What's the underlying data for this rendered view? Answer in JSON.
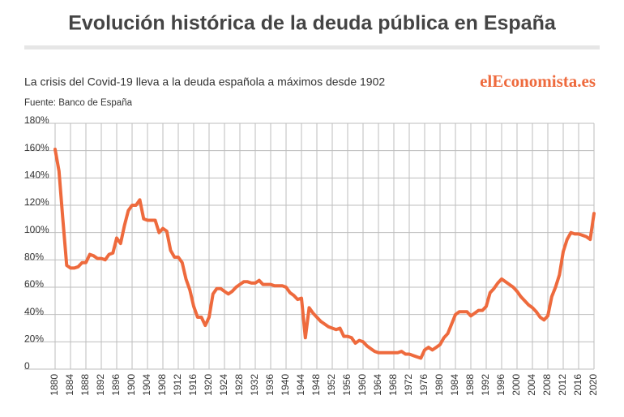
{
  "chart_data": {
    "type": "line",
    "title": "Evolución histórica de la deuda pública en España",
    "subtitle": "La crisis del Covid-19 lleva a la deuda española a máximos desde 1902",
    "source": "Fuente:  Banco de España",
    "brand": "elEconomista.es",
    "color": "#ee6a3d",
    "grid": true,
    "x": [
      1880,
      1881,
      1882,
      1883,
      1884,
      1885,
      1886,
      1887,
      1888,
      1889,
      1890,
      1891,
      1892,
      1893,
      1894,
      1895,
      1896,
      1897,
      1898,
      1899,
      1900,
      1901,
      1902,
      1903,
      1904,
      1905,
      1906,
      1907,
      1908,
      1909,
      1910,
      1911,
      1912,
      1913,
      1914,
      1915,
      1916,
      1917,
      1918,
      1919,
      1920,
      1921,
      1922,
      1923,
      1924,
      1925,
      1926,
      1927,
      1928,
      1929,
      1930,
      1931,
      1932,
      1933,
      1934,
      1935,
      1936,
      1937,
      1938,
      1939,
      1940,
      1941,
      1942,
      1943,
      1944,
      1945,
      1946,
      1947,
      1948,
      1949,
      1950,
      1951,
      1952,
      1953,
      1954,
      1955,
      1956,
      1957,
      1958,
      1959,
      1960,
      1961,
      1962,
      1963,
      1964,
      1965,
      1966,
      1967,
      1968,
      1969,
      1970,
      1971,
      1972,
      1973,
      1974,
      1975,
      1976,
      1977,
      1978,
      1979,
      1980,
      1981,
      1982,
      1983,
      1984,
      1985,
      1986,
      1987,
      1988,
      1989,
      1990,
      1991,
      1992,
      1993,
      1994,
      1995,
      1996,
      1997,
      1998,
      1999,
      2000,
      2001,
      2002,
      2003,
      2004,
      2005,
      2006,
      2007,
      2008,
      2009,
      2010,
      2011,
      2012,
      2013,
      2014,
      2015,
      2016,
      2017,
      2018,
      2019,
      2020
    ],
    "values": [
      161,
      145,
      110,
      76,
      74,
      74,
      75,
      78,
      78,
      84,
      83,
      81,
      81,
      80,
      84,
      85,
      96,
      92,
      105,
      116,
      120,
      120,
      124,
      110,
      109,
      109,
      109,
      100,
      103,
      101,
      87,
      82,
      82,
      78,
      66,
      58,
      46,
      38,
      38,
      32,
      38,
      55,
      59,
      59,
      57,
      55,
      57,
      60,
      62,
      64,
      64,
      63,
      63,
      65,
      62,
      62,
      62,
      61,
      61,
      61,
      60,
      56,
      54,
      51,
      52,
      23,
      45,
      41,
      38,
      35,
      33,
      31,
      30,
      29,
      30,
      24,
      24,
      23,
      19,
      21,
      20,
      17,
      15,
      13,
      12,
      12,
      12,
      12,
      12,
      12,
      13,
      11,
      11,
      10,
      9,
      8,
      14,
      16,
      14,
      16,
      18,
      23,
      26,
      33,
      40,
      42,
      42,
      42,
      39,
      41,
      43,
      43,
      46,
      56,
      59,
      63,
      66,
      64,
      62,
      60,
      57,
      53,
      50,
      47,
      45,
      42,
      38,
      36,
      39,
      53,
      60,
      69,
      86,
      95,
      100,
      99,
      99,
      98,
      97,
      95,
      114
    ],
    "xlim": [
      1880,
      2020
    ],
    "xticks": [
      1880,
      1884,
      1888,
      1892,
      1896,
      1900,
      1904,
      1908,
      1912,
      1916,
      1920,
      1924,
      1928,
      1932,
      1936,
      1940,
      1944,
      1948,
      1952,
      1956,
      1960,
      1964,
      1968,
      1972,
      1976,
      1980,
      1984,
      1988,
      1992,
      1996,
      2000,
      2004,
      2008,
      2012,
      2016,
      2020
    ],
    "ylim": [
      0,
      180
    ],
    "yticks": [
      0,
      {
        "value": 20,
        "label": "20%"
      },
      {
        "value": 40,
        "label": "40%"
      },
      {
        "value": 60,
        "label": "60%"
      },
      {
        "value": 80,
        "label": "80%"
      },
      {
        "value": 100,
        "label": "100%"
      },
      {
        "value": 120,
        "label": "120%"
      },
      {
        "value": 140,
        "label": "140%"
      },
      {
        "value": 160,
        "label": "160%"
      },
      {
        "value": 180,
        "label": "180%"
      }
    ]
  }
}
